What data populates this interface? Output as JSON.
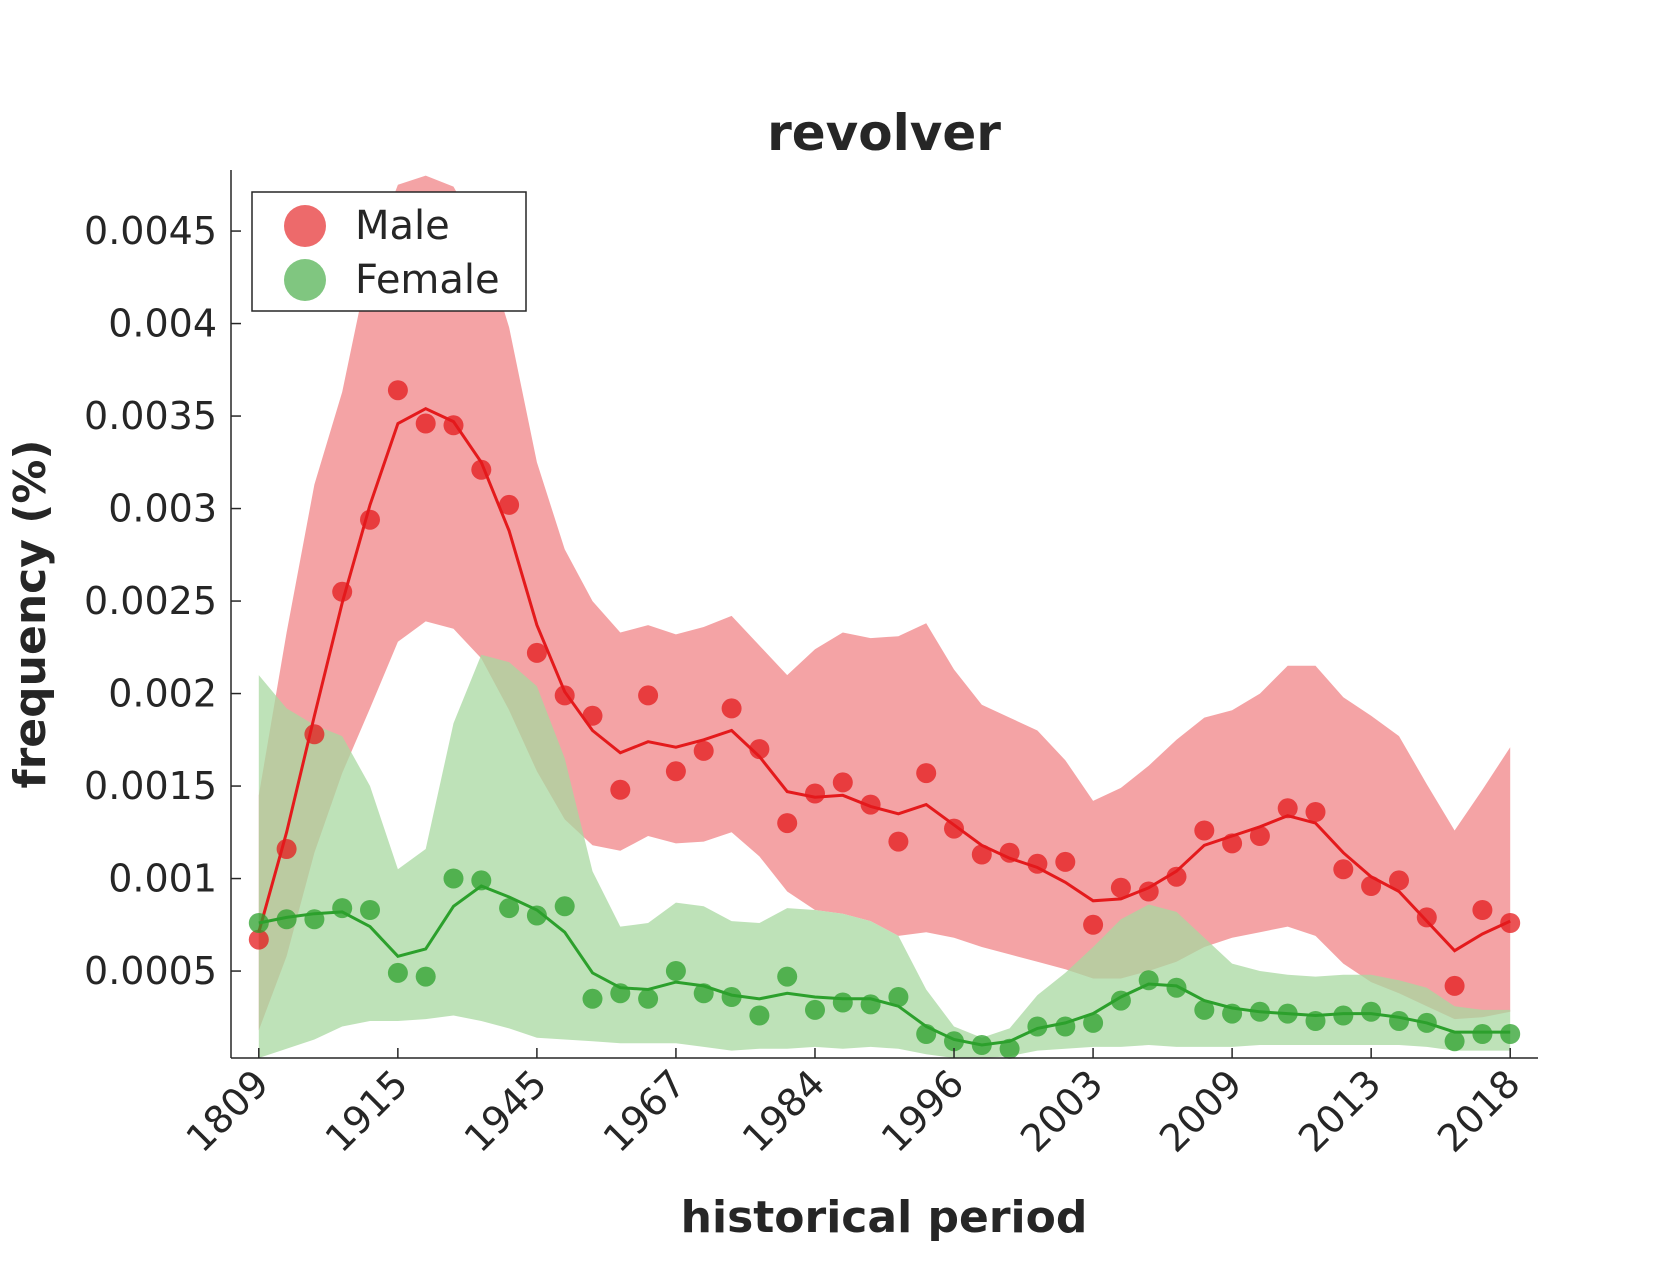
{
  "chart_data": {
    "type": "scatter",
    "title": "revolver",
    "xlabel": "historical period",
    "ylabel": "frequency (%)",
    "x_tick_labels": [
      "1809",
      "1915",
      "1945",
      "1967",
      "1984",
      "1996",
      "2003",
      "2009",
      "2013",
      "2018"
    ],
    "x_tick_positions": [
      0,
      5,
      10,
      15,
      20,
      25,
      30,
      35,
      40,
      45
    ],
    "x_range": [
      -1,
      46
    ],
    "ylim": [
      3e-05,
      0.00483
    ],
    "y_ticks": [
      0.0005,
      0.001,
      0.0015,
      0.002,
      0.0025,
      0.003,
      0.0035,
      0.004,
      0.0045
    ],
    "y_tick_labels": [
      "0.0005",
      "0.001",
      "0.0015",
      "0.002",
      "0.0025",
      "0.003",
      "0.0035",
      "0.004",
      "0.0045"
    ],
    "legend_position": "top-left",
    "grid": false,
    "series": [
      {
        "name": "Male",
        "color": "#e41a1c",
        "band_color": "#f4a3a5",
        "x": [
          0,
          1,
          2,
          3,
          4,
          5,
          6,
          7,
          8,
          9,
          10,
          11,
          12,
          13,
          14,
          15,
          16,
          17,
          18,
          19,
          20,
          21,
          22,
          23,
          24,
          25,
          26,
          27,
          28,
          29,
          30,
          31,
          32,
          33,
          34,
          35,
          36,
          37,
          38,
          39,
          40,
          41,
          42,
          43,
          44,
          45
        ],
        "points": [
          0.00067,
          0.00116,
          0.00178,
          0.00255,
          0.00294,
          0.00364,
          0.00346,
          0.00345,
          0.00321,
          0.00302,
          0.00222,
          0.00199,
          0.00188,
          0.00148,
          0.00199,
          0.00158,
          0.00169,
          0.00192,
          0.0017,
          0.0013,
          0.00146,
          0.00152,
          0.0014,
          0.0012,
          0.00157,
          0.00127,
          0.00113,
          0.00114,
          0.00108,
          0.00109,
          0.00075,
          0.00095,
          0.00093,
          0.00101,
          0.00126,
          0.00119,
          0.00123,
          0.00138,
          0.00136,
          0.00105,
          0.00096,
          0.00099,
          0.00079,
          0.00042,
          0.00083,
          0.00076
        ],
        "trend": [
          0.00071,
          0.00125,
          0.00188,
          0.00249,
          0.00302,
          0.00346,
          0.00354,
          0.00347,
          0.00325,
          0.00288,
          0.00237,
          0.00201,
          0.0018,
          0.00168,
          0.00174,
          0.00171,
          0.00175,
          0.0018,
          0.00166,
          0.00147,
          0.00144,
          0.00145,
          0.00139,
          0.00135,
          0.0014,
          0.00129,
          0.00118,
          0.00111,
          0.00106,
          0.00098,
          0.00088,
          0.00089,
          0.00095,
          0.00104,
          0.00118,
          0.00123,
          0.00128,
          0.00134,
          0.0013,
          0.00114,
          0.00101,
          0.00093,
          0.00077,
          0.00061,
          0.0007,
          0.00077
        ],
        "band_upper": [
          0.00145,
          0.00233,
          0.00313,
          0.00363,
          0.00435,
          0.00475,
          0.0048,
          0.00474,
          0.00447,
          0.00398,
          0.00325,
          0.00278,
          0.0025,
          0.00233,
          0.00237,
          0.00232,
          0.00236,
          0.00242,
          0.00226,
          0.0021,
          0.00224,
          0.00233,
          0.0023,
          0.00231,
          0.00238,
          0.00213,
          0.00194,
          0.00187,
          0.0018,
          0.00164,
          0.00142,
          0.00149,
          0.00161,
          0.00175,
          0.00187,
          0.00191,
          0.002,
          0.00215,
          0.00215,
          0.00198,
          0.00188,
          0.00177,
          0.00151,
          0.00126,
          0.00148,
          0.00171
        ],
        "band_lower": [
          0.00018,
          0.00058,
          0.00114,
          0.00157,
          0.00192,
          0.00228,
          0.00239,
          0.00235,
          0.00219,
          0.00191,
          0.00158,
          0.00132,
          0.00118,
          0.00115,
          0.00123,
          0.00119,
          0.0012,
          0.00125,
          0.00112,
          0.00093,
          0.00083,
          0.00081,
          0.00077,
          0.00069,
          0.00071,
          0.00068,
          0.00063,
          0.00059,
          0.00055,
          0.00051,
          0.00046,
          0.00046,
          0.0005,
          0.00055,
          0.00063,
          0.00068,
          0.00071,
          0.00074,
          0.00069,
          0.00054,
          0.00044,
          0.00038,
          0.00031,
          0.00024,
          0.00025,
          0.00028
        ]
      },
      {
        "name": "Female",
        "color": "#2ca02c",
        "band_color": "#a8d8a0",
        "x": [
          0,
          1,
          2,
          3,
          4,
          5,
          6,
          7,
          8,
          9,
          10,
          11,
          12,
          13,
          14,
          15,
          16,
          17,
          18,
          19,
          20,
          21,
          22,
          23,
          24,
          25,
          26,
          27,
          28,
          29,
          30,
          31,
          32,
          33,
          34,
          35,
          36,
          37,
          38,
          39,
          40,
          41,
          42,
          43,
          44,
          45
        ],
        "points": [
          0.00076,
          0.00078,
          0.00078,
          0.00084,
          0.00083,
          0.00049,
          0.00047,
          0.001,
          0.00099,
          0.00084,
          0.0008,
          0.00085,
          0.00035,
          0.00038,
          0.00035,
          0.0005,
          0.00038,
          0.00036,
          0.00026,
          0.00047,
          0.00029,
          0.00033,
          0.00032,
          0.00036,
          0.00016,
          0.00012,
          0.0001,
          8e-05,
          0.0002,
          0.0002,
          0.00022,
          0.00034,
          0.00045,
          0.00041,
          0.00029,
          0.00027,
          0.00028,
          0.00027,
          0.00023,
          0.00026,
          0.00028,
          0.00023,
          0.00022,
          0.00012,
          0.00016,
          0.00016
        ],
        "trend": [
          0.00076,
          0.00079,
          0.00081,
          0.00082,
          0.00074,
          0.00058,
          0.00062,
          0.00085,
          0.00096,
          0.0009,
          0.00083,
          0.00071,
          0.00049,
          0.00041,
          0.0004,
          0.00044,
          0.00042,
          0.00037,
          0.00035,
          0.00038,
          0.00036,
          0.00035,
          0.00035,
          0.00031,
          0.0002,
          0.00013,
          0.0001,
          0.00012,
          0.00019,
          0.00022,
          0.00027,
          0.00036,
          0.00043,
          0.00042,
          0.00034,
          0.0003,
          0.00028,
          0.00027,
          0.00026,
          0.00027,
          0.00027,
          0.00025,
          0.00022,
          0.00017,
          0.00017,
          0.00017
        ],
        "band_upper": [
          0.0021,
          0.00192,
          0.00183,
          0.00177,
          0.0015,
          0.00105,
          0.00116,
          0.00184,
          0.00221,
          0.00217,
          0.00204,
          0.00165,
          0.00104,
          0.00074,
          0.00076,
          0.00087,
          0.00085,
          0.00077,
          0.00076,
          0.00084,
          0.00083,
          0.00081,
          0.00077,
          0.00069,
          0.0004,
          0.0002,
          0.00014,
          0.00019,
          0.00037,
          0.00049,
          0.00063,
          0.00078,
          0.00086,
          0.00082,
          0.00068,
          0.00054,
          0.0005,
          0.00048,
          0.00047,
          0.00048,
          0.00048,
          0.00045,
          0.00041,
          0.00031,
          0.00029,
          0.00029
        ],
        "band_lower": [
          3e-05,
          8e-05,
          0.00013,
          0.0002,
          0.00023,
          0.00023,
          0.00024,
          0.00026,
          0.00023,
          0.00019,
          0.00014,
          0.00013,
          0.00012,
          0.00011,
          0.00011,
          0.00011,
          9e-05,
          7e-05,
          8e-05,
          8e-05,
          9e-05,
          8e-05,
          9e-05,
          8e-05,
          5e-05,
          3e-05,
          3e-05,
          4e-05,
          7e-05,
          8e-05,
          9e-05,
          9e-05,
          0.0001,
          9e-05,
          9e-05,
          9e-05,
          0.0001,
          0.0001,
          0.0001,
          0.0001,
          0.0001,
          0.0001,
          9e-05,
          7e-05,
          7e-05,
          7e-05
        ]
      }
    ]
  }
}
